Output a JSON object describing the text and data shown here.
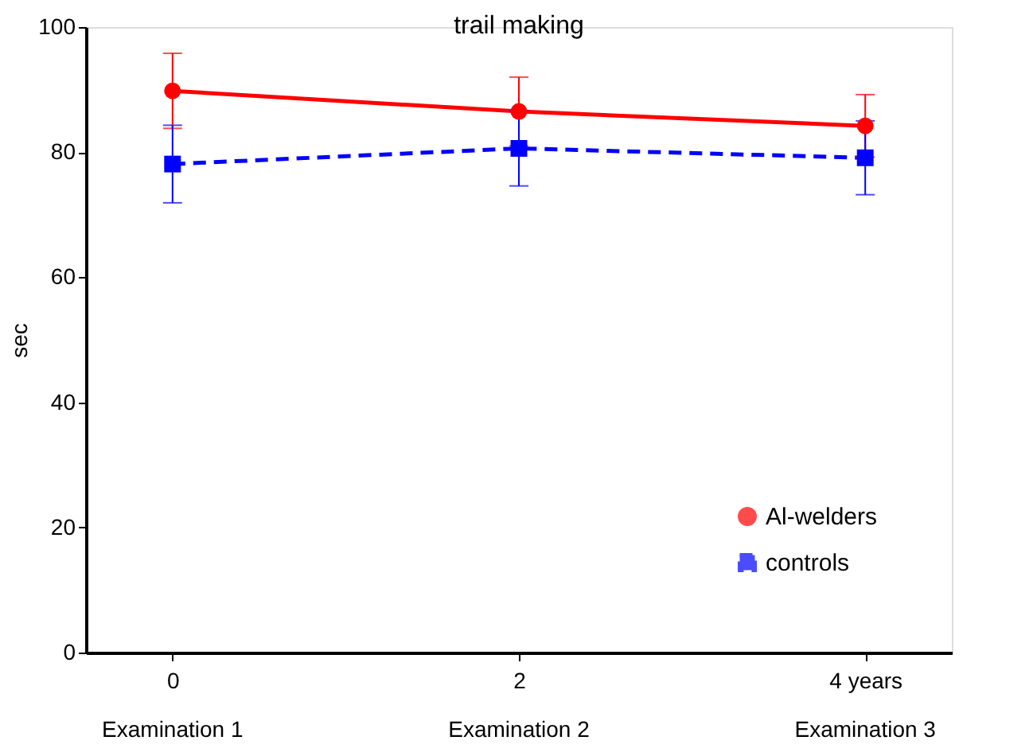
{
  "chart_data": {
    "type": "line",
    "title": "trail making",
    "ylabel": "sec",
    "x": [
      0,
      2,
      4
    ],
    "xlim": [
      -0.5,
      4.5
    ],
    "xticks": [
      0,
      2,
      {
        "value": 4,
        "label": "4 years"
      }
    ],
    "ylim": [
      0,
      100
    ],
    "yticks": [
      0,
      20,
      40,
      60,
      80,
      100
    ],
    "grid": false,
    "legend": "bottom right",
    "annotations": [
      "Examination 1",
      "Examination 2",
      "Examination 3"
    ],
    "series": [
      {
        "name": "Al-welders",
        "color": "#ff0000",
        "marker": "circle",
        "line_style": "solid",
        "values": [
          89.8,
          86.5,
          84.2
        ],
        "errors": [
          6,
          5.5,
          5
        ]
      },
      {
        "name": "controls",
        "color": "#0000ff",
        "marker": "square",
        "line_style": "dashed",
        "values": [
          78.1,
          80.6,
          79.1
        ],
        "errors": [
          6.2,
          6,
          5.9
        ]
      }
    ]
  }
}
